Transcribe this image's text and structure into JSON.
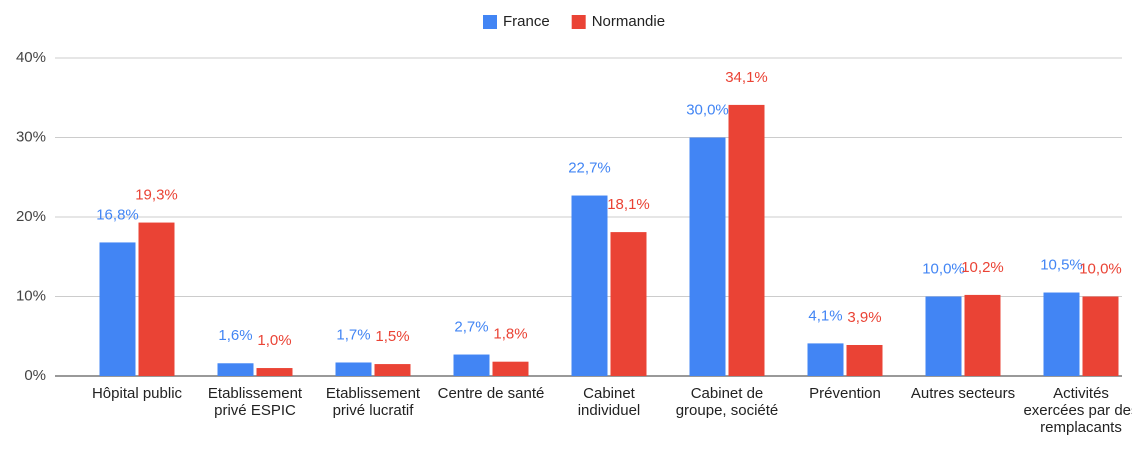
{
  "chart_data": {
    "type": "bar",
    "categories": [
      "Hôpital public",
      "Etablissement privé ESPIC",
      "Etablissement privé lucratif",
      "Centre de santé",
      "Cabinet individuel",
      "Cabinet de groupe, société",
      "Prévention",
      "Autres secteurs",
      "Activités exercées par des remplacants"
    ],
    "series": [
      {
        "name": "France",
        "color": "#4285f4",
        "values": [
          16.8,
          1.6,
          1.7,
          2.7,
          22.7,
          30.0,
          4.1,
          10.0,
          10.5
        ],
        "value_labels": [
          "16,8%",
          "1,6%",
          "1,7%",
          "2,7%",
          "22,7%",
          "30,0%",
          "4,1%",
          "10,0%",
          "10,5%"
        ]
      },
      {
        "name": "Normandie",
        "color": "#ea4335",
        "values": [
          19.3,
          1.0,
          1.5,
          1.8,
          18.1,
          34.1,
          3.9,
          10.2,
          10.0
        ],
        "value_labels": [
          "19,3%",
          "1,0%",
          "1,5%",
          "1,8%",
          "18,1%",
          "34,1%",
          "3,9%",
          "10,2%",
          "10,0%"
        ]
      }
    ],
    "ylim": [
      0,
      40
    ],
    "yticks": [
      {
        "value": 0,
        "label": "0%"
      },
      {
        "value": 10,
        "label": "10%"
      },
      {
        "value": 20,
        "label": "20%"
      },
      {
        "value": 30,
        "label": "30%"
      },
      {
        "value": 40,
        "label": "40%"
      }
    ],
    "grid": true,
    "legend": "top"
  }
}
